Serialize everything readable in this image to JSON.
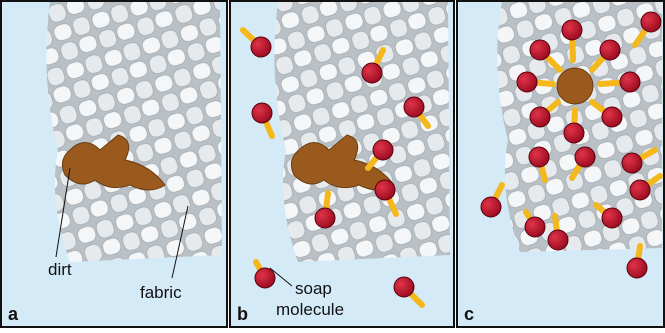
{
  "panels": [
    {
      "label": "a"
    },
    {
      "label": "b"
    },
    {
      "label": "c"
    }
  ],
  "annotations": {
    "dirt": "dirt",
    "fabric": "fabric",
    "soap_molecule": [
      "soap",
      "molecule"
    ]
  }
}
